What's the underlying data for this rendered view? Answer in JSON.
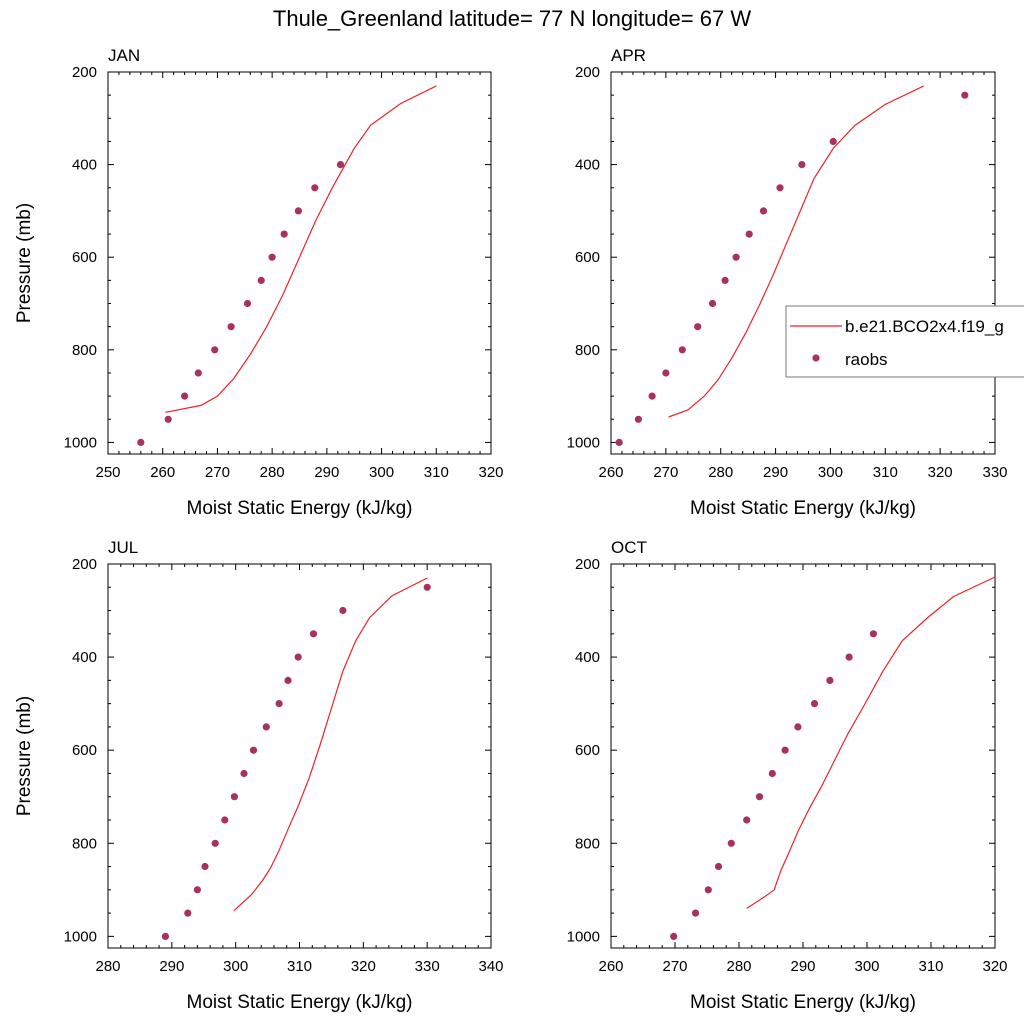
{
  "title": "Thule_Greenland  latitude= 77 N longitude= 67 W",
  "colors": {
    "model": "#e8242a",
    "raobs": "#a8325a"
  },
  "legend": {
    "entries": [
      {
        "label": "b.e21.BCO2x4.f19_g",
        "kind": "line"
      },
      {
        "label": "raobs",
        "kind": "marker"
      }
    ]
  },
  "chart_data": [
    {
      "type": "line",
      "panel": "JAN",
      "xlabel": "Moist Static Energy (kJ/kg)",
      "ylabel": "Pressure (mb)",
      "xlim": [
        250,
        320
      ],
      "ylim": [
        1025,
        200
      ],
      "xticks": [
        250,
        260,
        270,
        280,
        290,
        300,
        310,
        320
      ],
      "yticks": [
        200,
        400,
        600,
        800,
        1000
      ],
      "show_ylabel": true,
      "series": [
        {
          "kind": "line",
          "x": [
            260.5,
            267,
            270,
            273,
            276,
            279,
            282,
            285,
            288,
            291,
            295,
            298,
            303.5,
            310
          ],
          "y": [
            935,
            920,
            900,
            862,
            810,
            750,
            680,
            600,
            520,
            450,
            365,
            315,
            268,
            230
          ]
        },
        {
          "kind": "scatter",
          "x": [
            256,
            261,
            264,
            266.5,
            269.5,
            272.5,
            275.5,
            278,
            280,
            282.2,
            284.8,
            287.8,
            292.5
          ],
          "y": [
            1000,
            950,
            900,
            850,
            800,
            750,
            700,
            650,
            600,
            550,
            500,
            450,
            400
          ]
        }
      ]
    },
    {
      "type": "line",
      "panel": "APR",
      "xlabel": "Moist Static Energy (kJ/kg)",
      "ylabel": "Pressure (mb)",
      "xlim": [
        260,
        330
      ],
      "ylim": [
        1025,
        200
      ],
      "xticks": [
        260,
        270,
        280,
        290,
        300,
        310,
        320,
        330
      ],
      "yticks": [
        200,
        400,
        600,
        800,
        1000
      ],
      "show_ylabel": false,
      "series": [
        {
          "kind": "line",
          "x": [
            270.5,
            274,
            277,
            279.5,
            282,
            284.5,
            287,
            289.5,
            292,
            294.5,
            297,
            300.5,
            304.5,
            310,
            317
          ],
          "y": [
            945,
            930,
            900,
            865,
            818,
            765,
            705,
            640,
            570,
            500,
            430,
            365,
            315,
            270,
            230
          ]
        },
        {
          "kind": "scatter",
          "x": [
            261.5,
            265,
            267.5,
            270,
            273,
            275.8,
            278.5,
            280.8,
            282.8,
            285.2,
            287.8,
            290.8,
            294.8,
            300.5,
            324.5
          ],
          "y": [
            1000,
            950,
            900,
            850,
            800,
            750,
            700,
            650,
            600,
            550,
            500,
            450,
            400,
            350,
            250
          ]
        }
      ]
    },
    {
      "type": "line",
      "panel": "JUL",
      "xlabel": "Moist Static Energy (kJ/kg)",
      "ylabel": "Pressure (mb)",
      "xlim": [
        280,
        340
      ],
      "ylim": [
        1025,
        200
      ],
      "xticks": [
        280,
        290,
        300,
        310,
        320,
        330,
        340
      ],
      "yticks": [
        200,
        400,
        600,
        800,
        1000
      ],
      "show_ylabel": true,
      "series": [
        {
          "kind": "line",
          "x": [
            299.7,
            302.5,
            304.2,
            305.5,
            306.8,
            308.2,
            309.8,
            311.5,
            313.2,
            315,
            316.8,
            318.8,
            321,
            324.5,
            330
          ],
          "y": [
            945,
            910,
            880,
            852,
            815,
            770,
            720,
            660,
            590,
            510,
            430,
            365,
            315,
            268,
            230
          ]
        },
        {
          "kind": "scatter",
          "x": [
            289,
            292.5,
            294,
            295.2,
            296.8,
            298.3,
            299.8,
            301.3,
            302.8,
            304.8,
            306.8,
            308.2,
            309.8,
            312.2,
            316.8,
            330
          ],
          "y": [
            1000,
            950,
            900,
            850,
            800,
            750,
            700,
            650,
            600,
            550,
            500,
            450,
            400,
            350,
            300,
            250
          ]
        }
      ]
    },
    {
      "type": "line",
      "panel": "OCT",
      "xlabel": "Moist Static Energy (kJ/kg)",
      "ylabel": "Pressure (mb)",
      "xlim": [
        260,
        320
      ],
      "ylim": [
        1025,
        200
      ],
      "xticks": [
        260,
        270,
        280,
        290,
        300,
        310,
        320
      ],
      "yticks": [
        200,
        400,
        600,
        800,
        1000
      ],
      "show_ylabel": false,
      "series": [
        {
          "kind": "line",
          "x": [
            281.2,
            284,
            285.5,
            286.5,
            287.8,
            289.2,
            291,
            293,
            295,
            297,
            299.5,
            302.5,
            305.5,
            309.5,
            313.5,
            320
          ],
          "y": [
            940,
            915,
            900,
            860,
            820,
            775,
            725,
            675,
            620,
            565,
            505,
            430,
            365,
            315,
            270,
            228
          ]
        },
        {
          "kind": "scatter",
          "x": [
            269.8,
            273.2,
            275.2,
            276.8,
            278.8,
            281.2,
            283.2,
            285.2,
            287.2,
            289.2,
            291.8,
            294.2,
            297.2,
            301
          ],
          "y": [
            1000,
            950,
            900,
            850,
            800,
            750,
            700,
            650,
            600,
            550,
            500,
            450,
            400,
            350
          ]
        }
      ]
    }
  ]
}
